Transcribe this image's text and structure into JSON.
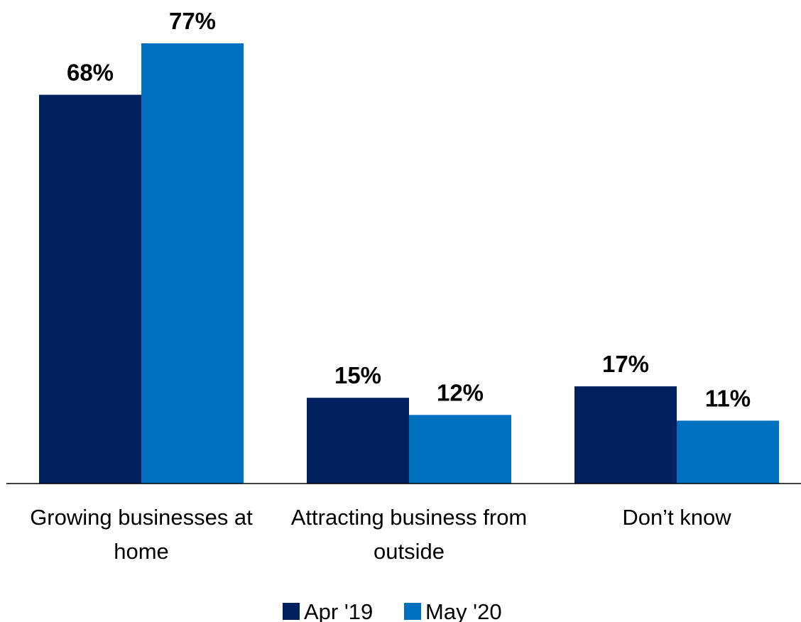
{
  "chart_data": {
    "type": "bar",
    "categories": [
      [
        "Growing businesses at",
        "home"
      ],
      [
        "Attracting business from",
        "outside"
      ],
      [
        "Don’t know"
      ]
    ],
    "series": [
      {
        "name": "Apr '19",
        "color": "#002060",
        "values": [
          68,
          15,
          17
        ],
        "labels": [
          "68%",
          "15%",
          "17%"
        ]
      },
      {
        "name": "May '20",
        "color": "#0070C0",
        "values": [
          77,
          12,
          11
        ],
        "labels": [
          "77%",
          "12%",
          "11%"
        ]
      }
    ],
    "ylim": [
      0,
      77
    ],
    "grid": false,
    "legend": "bottom-center"
  }
}
